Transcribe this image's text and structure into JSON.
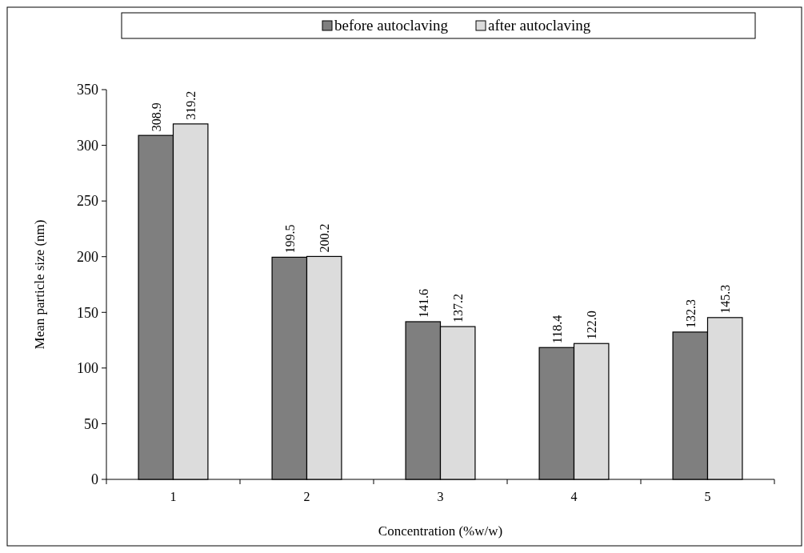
{
  "chart_data": {
    "type": "bar",
    "xlabel": "Concentration (%w/w)",
    "ylabel": "Mean particle size (nm)",
    "categories": [
      "1",
      "2",
      "3",
      "4",
      "5"
    ],
    "series": [
      {
        "name": "before autoclaving",
        "color": "#7f7f7f",
        "values": [
          308.9,
          199.5,
          141.6,
          118.4,
          132.3
        ],
        "value_labels": [
          "308.9",
          "199.5",
          "141.6",
          "118.4",
          "132.3"
        ]
      },
      {
        "name": "after autoclaving",
        "color": "#dcdcdc",
        "values": [
          319.2,
          200.2,
          137.2,
          122.0,
          145.3
        ],
        "value_labels": [
          "319.2",
          "200.2",
          "137.2",
          "122.0",
          "145.3"
        ]
      }
    ],
    "ylim": [
      0,
      350
    ],
    "yticks": [
      0,
      50,
      100,
      150,
      200,
      250,
      300,
      350
    ],
    "grid": false,
    "legend": "top"
  }
}
